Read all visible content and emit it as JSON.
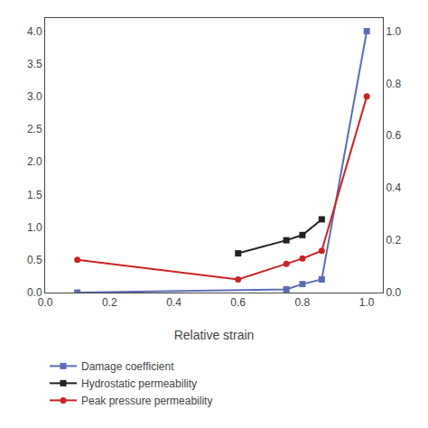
{
  "chart_data": {
    "type": "line",
    "xlabel": "Relative strain",
    "xlim": [
      0.0,
      1.05
    ],
    "ylim": [
      0.0,
      4.2
    ],
    "y2lim": [
      0.0,
      1.05
    ],
    "xticks": [
      {
        "value": 0.0,
        "label": "0.0"
      },
      0.2,
      0.4,
      0.6,
      0.8,
      {
        "value": 1.0,
        "label": "1.0"
      }
    ],
    "yticks": [
      {
        "value": 0.0,
        "label": "0.0"
      },
      0.5,
      {
        "value": 1.0,
        "label": "1.0"
      },
      1.5,
      {
        "value": 2.0,
        "label": "2.0"
      },
      2.5,
      {
        "value": 3.0,
        "label": "3.0"
      },
      3.5,
      {
        "value": 4.0,
        "label": "4.0"
      }
    ],
    "y2ticks": [
      {
        "value": 0.0,
        "label": "0.0"
      },
      0.2,
      0.4,
      0.6,
      0.8,
      {
        "value": 1.0,
        "label": "1.0"
      }
    ],
    "grid": false,
    "legend": "bottom",
    "series": [
      {
        "name": "Damage coefficient",
        "color": "#5b6cb5",
        "marker": "square",
        "x": [
          0.1,
          0.75,
          0.8,
          0.86,
          1.0
        ],
        "values": [
          0.0,
          0.05,
          0.13,
          0.2,
          4.0
        ]
      },
      {
        "name": "Hydrostatic permeability",
        "color": "#222222",
        "marker": "square",
        "axis": "y2",
        "x": [
          0.6,
          0.75,
          0.8,
          0.86
        ],
        "values": [
          0.15,
          0.2,
          0.22,
          0.28
        ]
      },
      {
        "name": "Peak pressure permeability",
        "color": "#cc2222",
        "marker": "circle",
        "axis": "y2",
        "x": [
          0.1,
          0.6,
          0.75,
          0.8,
          0.86,
          1.0
        ],
        "values": [
          0.125,
          0.05,
          0.11,
          0.13,
          0.16,
          0.75
        ]
      }
    ]
  }
}
